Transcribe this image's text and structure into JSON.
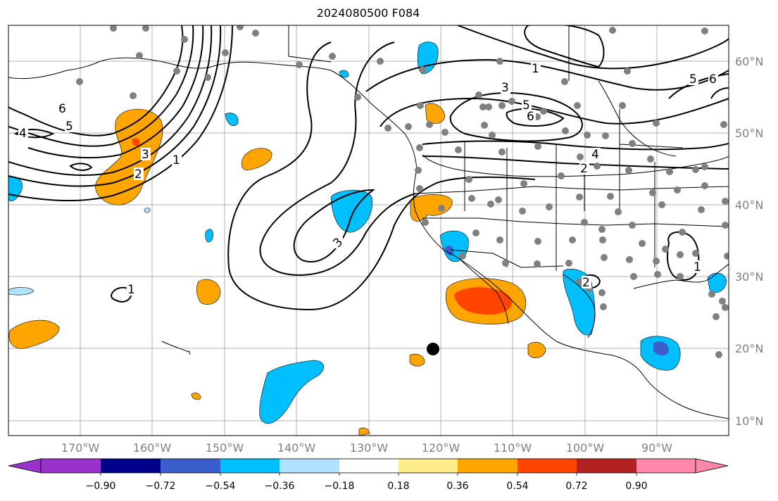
{
  "title": "2024080500 F084",
  "map": {
    "projection": "Mercator",
    "lon_range": [
      "180°W",
      "80°W"
    ],
    "lat_range": [
      "8°N",
      "65°N"
    ],
    "lat_labels": [
      "60°N",
      "50°N",
      "40°N",
      "30°N",
      "20°N",
      "10°N"
    ],
    "lon_labels": [
      "170°W",
      "160°W",
      "150°W",
      "140°W",
      "130°W",
      "120°W",
      "110°W",
      "100°W",
      "90°W"
    ],
    "contour_color": "#000000",
    "contour_labels": [
      "6",
      "5",
      "4",
      "3",
      "2",
      "1",
      "1",
      "3",
      "5",
      "6",
      "4",
      "2",
      "3",
      "2",
      "1",
      "5",
      "6",
      "1"
    ],
    "station_color": "#808080",
    "marker_color": "#000000"
  },
  "colorbar": {
    "labels": [
      "−0.90",
      "−0.72",
      "−0.54",
      "−0.36",
      "−0.18",
      "0.18",
      "0.36",
      "0.54",
      "0.72",
      "0.90"
    ],
    "colors": [
      "#9932CC",
      "#00008B",
      "#3A5FCD",
      "#00BFFF",
      "#B0E2FF",
      "#FFFFFF",
      "#FFEC8B",
      "#FFA500",
      "#FF4500",
      "#B22222",
      "#FF88AA"
    ]
  }
}
